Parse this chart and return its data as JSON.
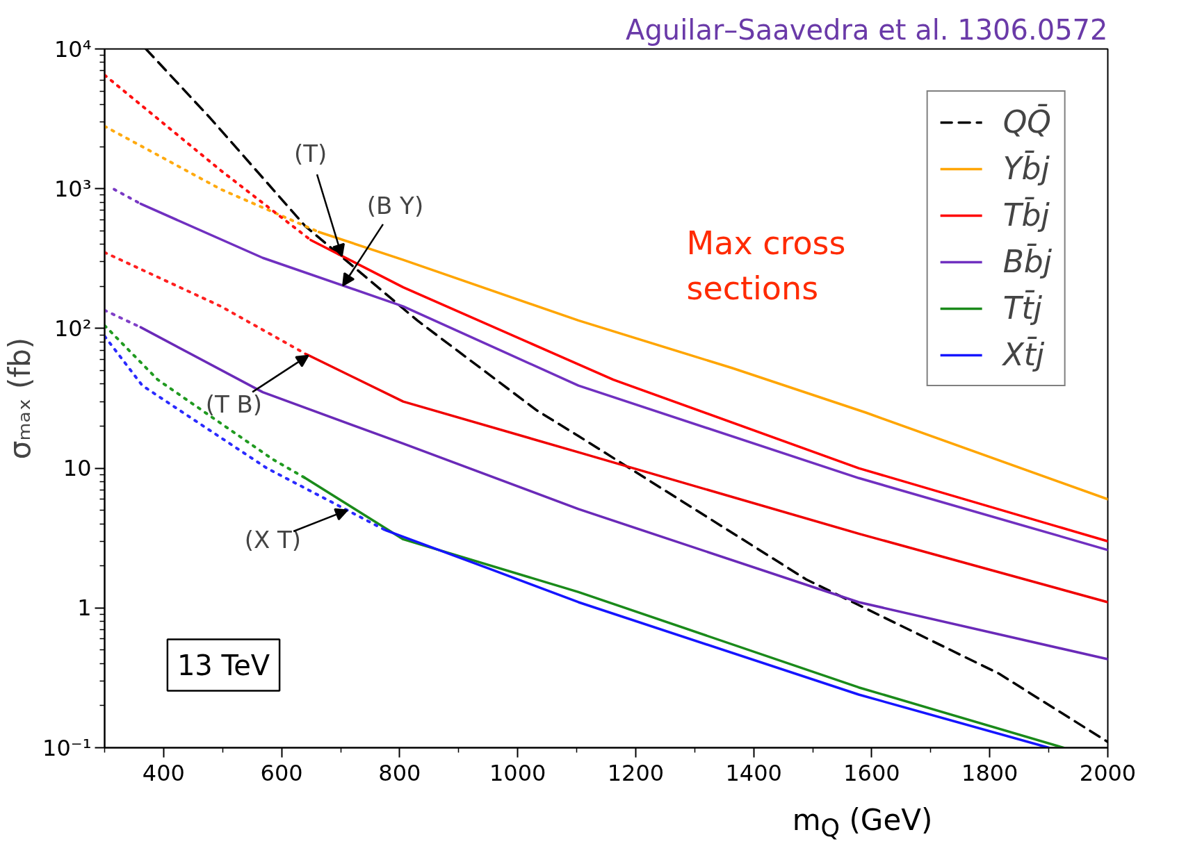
{
  "chart_data": {
    "type": "line",
    "title": "Aguilar–Saavedra et al. 1306.0572",
    "xlabel": "m$_{Q}$ (GeV)",
    "ylabel": "σₘₐₓ (fb)",
    "log": true,
    "grid": false,
    "legend": "top right",
    "marker": "none",
    "xlim": [
      300,
      2000
    ],
    "xticks": [
      400,
      600,
      800,
      1000,
      1200,
      1400,
      1600,
      1800,
      2000
    ],
    "ylim": [
      0.1,
      10000
    ],
    "yticks": [
      {
        "value": 0.1,
        "label": "10⁻¹"
      },
      1,
      10,
      {
        "value": 100,
        "label": "10²"
      },
      {
        "value": 1000,
        "label": "10³"
      },
      {
        "value": 10000,
        "label": "10⁴"
      }
    ],
    "series": [
      {
        "name": "QQ̄",
        "color": "#000000",
        "line_style": "dashed",
        "x": [
          370,
          479,
          640,
          830,
          1032,
          1103,
          1489,
          1815,
          2000
        ],
        "values": [
          10000,
          3200,
          540,
          114,
          26,
          17,
          1.6,
          0.34,
          0.11
        ]
      },
      {
        "color": "#ffaa10",
        "line_style": "dotted",
        "x": [
          300,
          497,
          663
        ],
        "values": [
          2800,
          990,
          490
        ]
      },
      {
        "name": "Yb̄j",
        "color": "#ffa500",
        "line_style": "solid",
        "x": [
          663,
          806,
          1103,
          1364,
          1590,
          2000
        ],
        "values": [
          490,
          310,
          114,
          52,
          25,
          6
        ]
      },
      {
        "color": "#ff1010",
        "line_style": "dotted",
        "x": [
          300,
          497,
          649
        ],
        "values": [
          6500,
          1350,
          430
        ]
      },
      {
        "name": "Tb̄j",
        "color": "#ff0000",
        "line_style": "solid",
        "x": [
          649,
          806,
          1162,
          1578,
          2000
        ],
        "values": [
          430,
          197,
          43,
          10,
          3
        ]
      },
      {
        "color": "#7838c4",
        "line_style": "dotted",
        "x": [
          316,
          361
        ],
        "values": [
          990,
          780
        ]
      },
      {
        "name": "Bb̄j",
        "color": "#7030c0",
        "line_style": "solid",
        "x": [
          361,
          568,
          806,
          1103,
          1578,
          2000
        ],
        "values": [
          780,
          320,
          144,
          39,
          8.5,
          2.6
        ]
      },
      {
        "color": "#ff2020",
        "line_style": "dotted",
        "x": [
          300,
          497,
          640
        ],
        "values": [
          350,
          144,
          66
        ]
      },
      {
        "color": "#f00000",
        "line_style": "solid",
        "x": [
          640,
          806,
          1103,
          1578,
          2000
        ],
        "values": [
          66,
          30,
          13,
          3.4,
          1.1
        ]
      },
      {
        "color": "#8040c8",
        "line_style": "dotted",
        "x": [
          300,
          361
        ],
        "values": [
          135,
          102
        ]
      },
      {
        "color": "#6a2ab8",
        "line_style": "solid",
        "x": [
          361,
          568,
          806,
          1103,
          1578,
          2000
        ],
        "values": [
          102,
          35,
          15,
          5.1,
          1.1,
          0.43
        ]
      },
      {
        "color": "#209a20",
        "line_style": "dotted",
        "x": [
          300,
          390,
          586,
          640
        ],
        "values": [
          105,
          43,
          11.5,
          8.5
        ]
      },
      {
        "name": "Tt̄j",
        "color": "#1a8a1a",
        "line_style": "solid",
        "x": [
          640,
          806,
          1103,
          1578,
          1925
        ],
        "values": [
          8.5,
          3.1,
          1.3,
          0.27,
          0.1
        ]
      },
      {
        "color": "#2a2aff",
        "line_style": "dotted",
        "x": [
          300,
          364,
          575,
          776
        ],
        "values": [
          88,
          39,
          10,
          3.6
        ]
      },
      {
        "name": "Xt̄j",
        "color": "#1515ff",
        "line_style": "solid",
        "x": [
          776,
          953,
          1103,
          1578,
          1900
        ],
        "values": [
          3.6,
          1.9,
          1.1,
          0.24,
          0.1
        ]
      }
    ],
    "annotations": [
      {
        "text": "(T)",
        "x": 702,
        "y": 330
      },
      {
        "text": "(B Y)",
        "x": 704,
        "y": 203
      },
      {
        "text": "(T B)",
        "x": 645,
        "y": 64
      },
      {
        "text": "(X T)",
        "x": 711,
        "y": 5
      },
      "13 TeV",
      "Max cross\nsections"
    ]
  }
}
